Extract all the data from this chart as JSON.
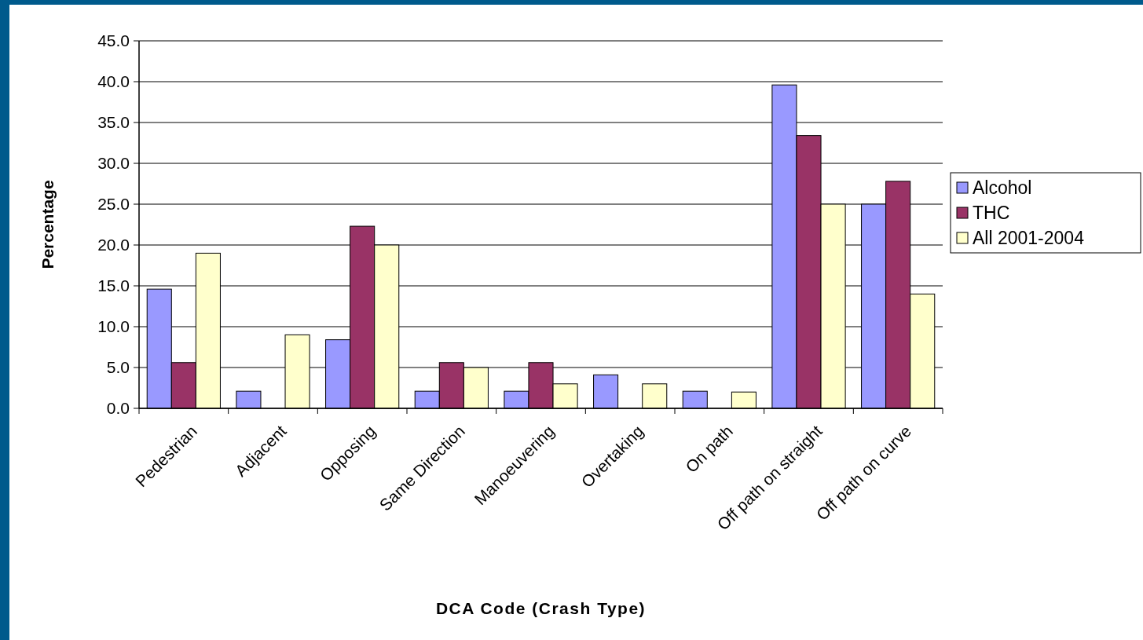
{
  "chart_data": {
    "type": "bar",
    "xlabel": "DCA Code (Crash Type)",
    "ylabel": "Percentage",
    "categories": [
      "Pedestrian",
      "Adjacent",
      "Opposing",
      "Same Direction",
      "Manoeuvering",
      "Overtaking",
      "On path",
      "Off path on straight",
      "Off path on curve"
    ],
    "series": [
      {
        "name": "Alcohol",
        "color": "#9999ff",
        "values": [
          14.6,
          2.1,
          8.4,
          2.1,
          2.1,
          4.1,
          2.1,
          39.6,
          25.0
        ]
      },
      {
        "name": "THC",
        "color": "#993366",
        "values": [
          5.6,
          0,
          22.3,
          5.6,
          5.6,
          0,
          0,
          33.4,
          27.8
        ]
      },
      {
        "name": "All 2001-2004",
        "color": "#ffffcc",
        "values": [
          19.0,
          9.0,
          20.0,
          5.0,
          3.0,
          3.0,
          2.0,
          25.0,
          14.0
        ]
      }
    ],
    "ylim": [
      0,
      45
    ],
    "yticks": [
      {
        "value": 0,
        "label": "0.0"
      },
      {
        "value": 5,
        "label": "5.0"
      },
      {
        "value": 10,
        "label": "10.0"
      },
      {
        "value": 15,
        "label": "15.0"
      },
      {
        "value": 20,
        "label": "20.0"
      },
      {
        "value": 25,
        "label": "25.0"
      },
      {
        "value": 30,
        "label": "30.0"
      },
      {
        "value": 35,
        "label": "35.0"
      },
      {
        "value": 40,
        "label": "40.0"
      },
      {
        "value": 45,
        "label": "45.0"
      }
    ],
    "grid": "y",
    "legend": "right"
  }
}
